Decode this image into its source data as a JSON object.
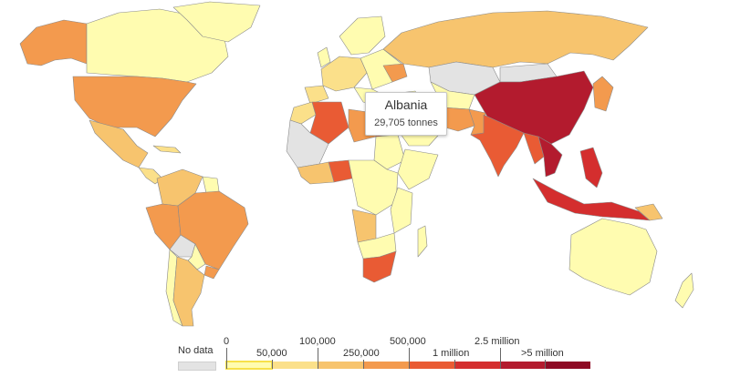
{
  "tooltip": {
    "country": "Albania",
    "value": "29,705 tonnes"
  },
  "legend": {
    "no_data_label": "No data",
    "top_labels": [
      "0",
      "100,000",
      "500,000",
      "2.5 million"
    ],
    "bottom_labels": [
      "50,000",
      "250,000",
      "1 million",
      ">5 million"
    ],
    "bins": [
      {
        "range": "0–50,000",
        "color": "#fffcb0"
      },
      {
        "range": "50,000–100,000",
        "color": "#fbe08a"
      },
      {
        "range": "100,000–250,000",
        "color": "#f7c46e"
      },
      {
        "range": "250,000–500,000",
        "color": "#f39a4e"
      },
      {
        "range": "500,000–1 million",
        "color": "#e95b34"
      },
      {
        "range": "1 million–2.5 million",
        "color": "#d42e2e"
      },
      {
        "range": "2.5 million–5 million",
        "color": "#b31b2e"
      },
      {
        "range": ">5 million",
        "color": "#8e0a24"
      }
    ],
    "selected_bin": 0
  },
  "colors": {
    "no_data": "#e3e3e3",
    "border": "#8a8a8a"
  }
}
